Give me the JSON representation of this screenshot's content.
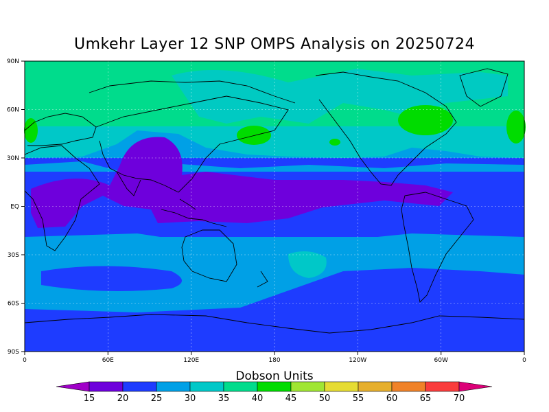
{
  "title": "Umkehr Layer 12 SNP OMPS Analysis on 20250724",
  "lat_labels": [
    "90N",
    "60N",
    "30N",
    "EQ",
    "30S",
    "60S",
    "90S"
  ],
  "lon_labels": [
    "0",
    "60E",
    "120E",
    "180",
    "120W",
    "60W",
    "0"
  ],
  "colorbar": {
    "title": "Dobson Units",
    "levels": [
      "15",
      "20",
      "25",
      "30",
      "35",
      "40",
      "45",
      "50",
      "55",
      "60",
      "65",
      "70"
    ],
    "colors": [
      "#a000c8",
      "#6e00dc",
      "#1e3cff",
      "#00a0e6",
      "#00c8c8",
      "#00dc8c",
      "#00dc00",
      "#a0e632",
      "#e6dc32",
      "#e6af2d",
      "#f08228",
      "#fa3c3c",
      "#dc0078"
    ]
  }
}
